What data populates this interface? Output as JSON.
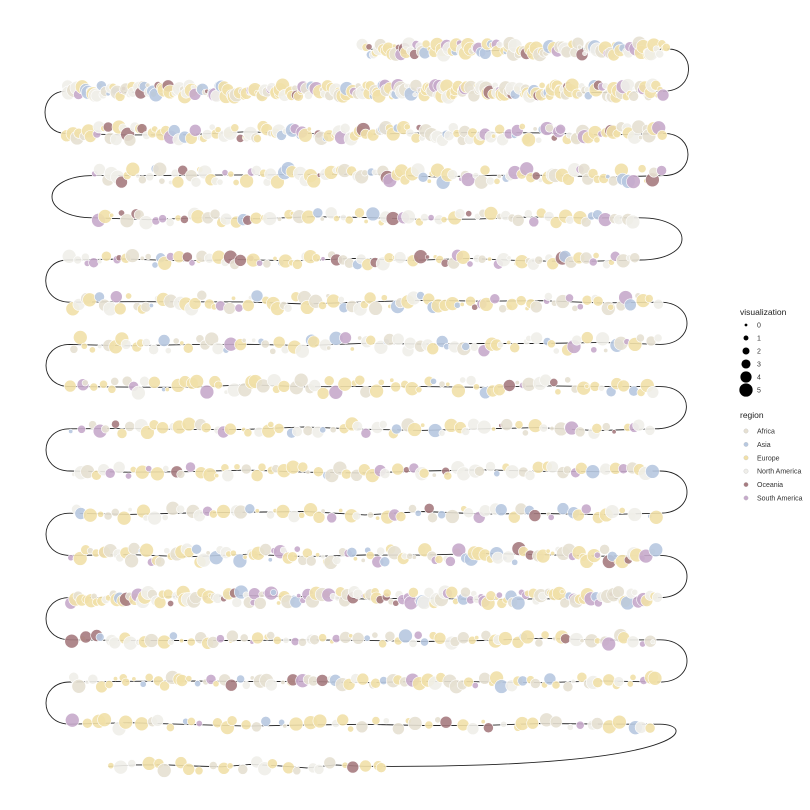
{
  "chart_data": {
    "type": "scatter",
    "title": "",
    "xlabel": "",
    "ylabel": "",
    "grid": false,
    "axes_visible": false,
    "legend_position": "right",
    "path": "serpentine connecting line through all points, starting top-right row and snaking downwards row by row",
    "size_legend": {
      "title": "visualization",
      "levels": [
        "0",
        "1",
        "2",
        "3",
        "4",
        "5"
      ]
    },
    "color_legend": {
      "title": "region",
      "categories": [
        "Africa",
        "Asia",
        "Europe",
        "North America",
        "Oceania",
        "South America"
      ],
      "colors": [
        "#e6e0d2",
        "#b7c8e0",
        "#f1e0a8",
        "#efeee9",
        "#a67b80",
        "#c6aacb"
      ],
      "weights": [
        0.2,
        0.08,
        0.38,
        0.2,
        0.04,
        0.1
      ]
    },
    "rows": [
      {
        "x": [
          362,
          668
        ],
        "n": 120,
        "density": "dense"
      },
      {
        "x": [
          66,
          664
        ],
        "n": 260,
        "density": "dense"
      },
      {
        "x": [
          66,
          664
        ],
        "n": 150,
        "density": "medium"
      },
      {
        "x": [
          94,
          664
        ],
        "n": 110,
        "density": "medium"
      },
      {
        "x": [
          94,
          640
        ],
        "n": 75,
        "density": "sparse"
      },
      {
        "x": [
          68,
          640
        ],
        "n": 90,
        "density": "sparse"
      },
      {
        "x": [
          70,
          660
        ],
        "n": 95,
        "density": "medium"
      },
      {
        "x": [
          70,
          660
        ],
        "n": 85,
        "density": "medium"
      },
      {
        "x": [
          70,
          660
        ],
        "n": 80,
        "density": "medium"
      },
      {
        "x": [
          70,
          655
        ],
        "n": 70,
        "density": "sparse"
      },
      {
        "x": [
          70,
          660
        ],
        "n": 75,
        "density": "sparse"
      },
      {
        "x": [
          70,
          660
        ],
        "n": 70,
        "density": "sparse"
      },
      {
        "x": [
          70,
          660
        ],
        "n": 120,
        "density": "medium"
      },
      {
        "x": [
          70,
          660
        ],
        "n": 160,
        "density": "dense"
      },
      {
        "x": [
          70,
          660
        ],
        "n": 80,
        "density": "sparse"
      },
      {
        "x": [
          70,
          660
        ],
        "n": 85,
        "density": "sparse"
      },
      {
        "x": [
          70,
          660
        ],
        "n": 55,
        "density": "sparse"
      },
      {
        "x": [
          108,
          392
        ],
        "n": 26,
        "density": "sparse"
      }
    ]
  }
}
